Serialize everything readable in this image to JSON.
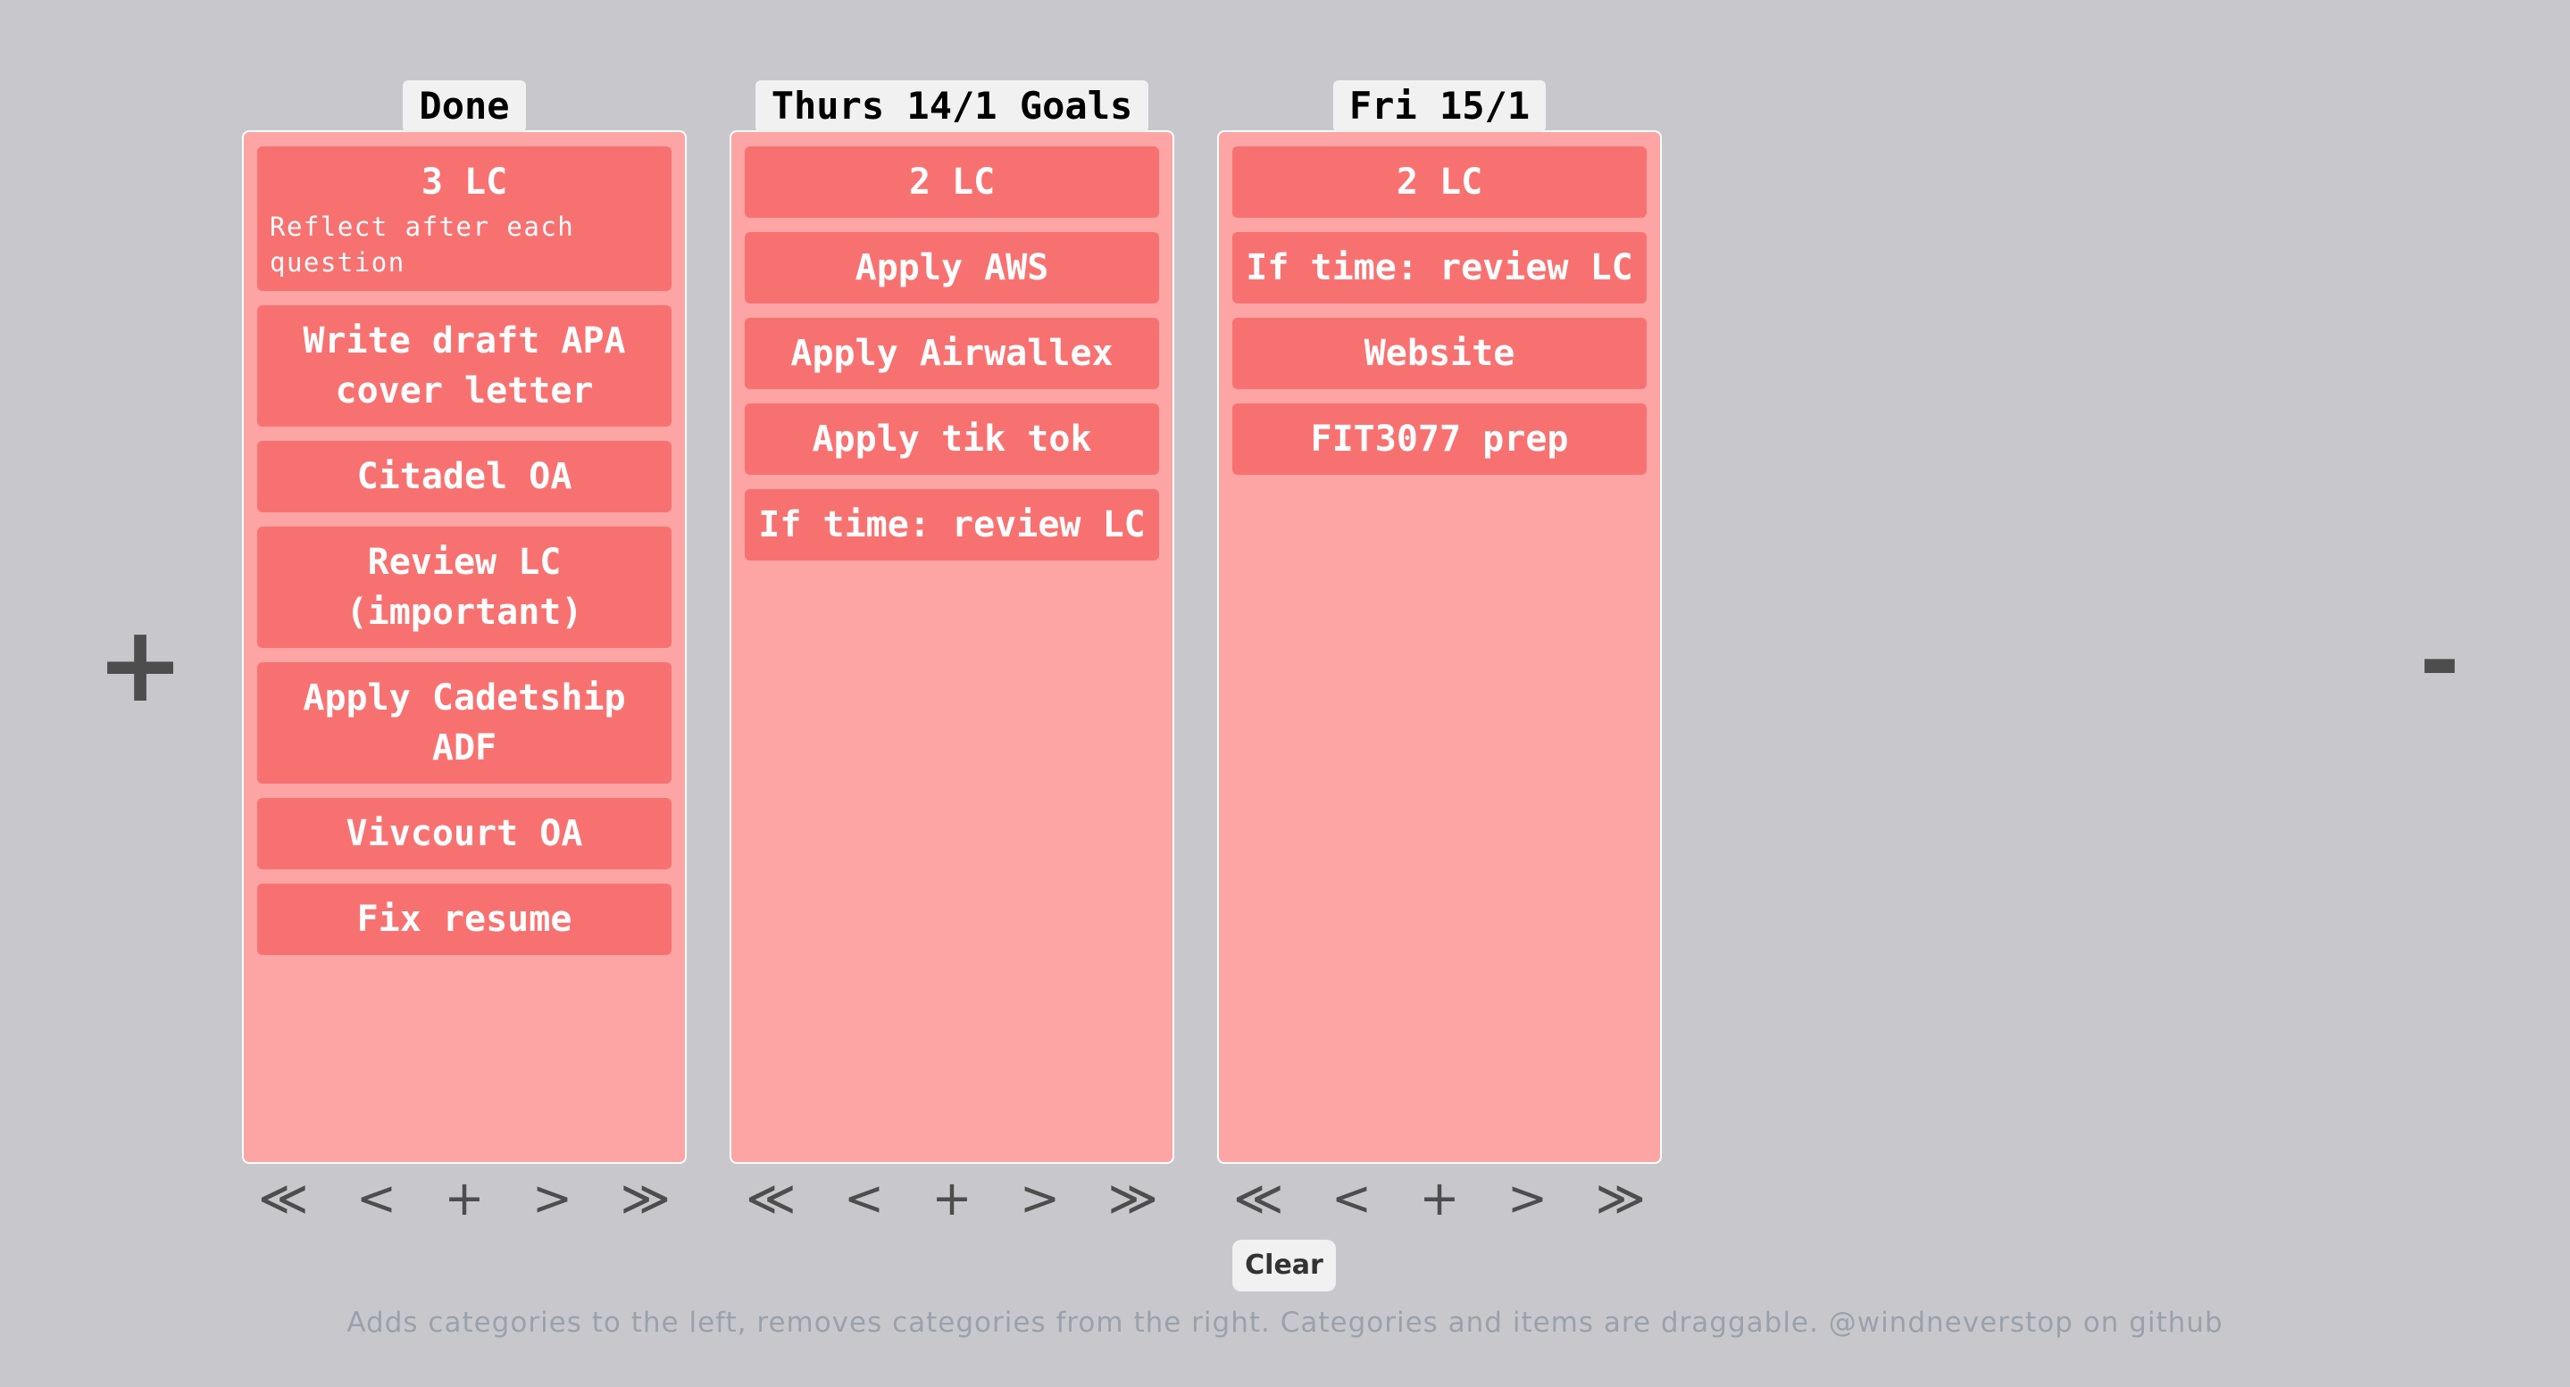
{
  "controls": {
    "add_category": "+",
    "remove_category": "-",
    "clear": "Clear"
  },
  "categories": [
    {
      "title": "Done",
      "items": [
        {
          "title": "3 LC",
          "note": "Reflect after each question"
        },
        {
          "title": "Write draft APA cover letter"
        },
        {
          "title": "Citadel OA"
        },
        {
          "title": "Review LC (important)"
        },
        {
          "title": "Apply Cadetship ADF"
        },
        {
          "title": "Vivcourt OA"
        },
        {
          "title": "Fix resume"
        }
      ],
      "nav": {
        "first": "≪",
        "prev": "<",
        "add": "+",
        "next": ">",
        "last": "≫"
      }
    },
    {
      "title": "Thurs 14/1 Goals",
      "items": [
        {
          "title": "2 LC"
        },
        {
          "title": "Apply AWS"
        },
        {
          "title": "Apply Airwallex"
        },
        {
          "title": "Apply tik tok"
        },
        {
          "title": "If time: review LC"
        }
      ],
      "nav": {
        "first": "≪",
        "prev": "<",
        "add": "+",
        "next": ">",
        "last": "≫"
      }
    },
    {
      "title": "Fri 15/1",
      "items": [
        {
          "title": "2 LC"
        },
        {
          "title": "If time: review LC"
        },
        {
          "title": "Website"
        },
        {
          "title": "FIT3077 prep"
        }
      ],
      "nav": {
        "first": "≪",
        "prev": "<",
        "add": "+",
        "next": ">",
        "last": "≫"
      }
    }
  ],
  "footer": {
    "text": "Adds categories to the left, removes categories from the right. Categories and items are draggable. @windneverstop on github"
  }
}
